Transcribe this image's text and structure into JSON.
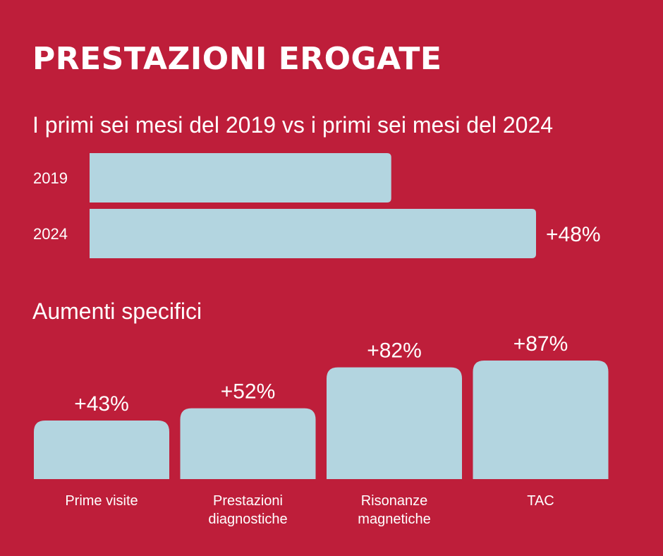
{
  "title": "PRESTAZIONI EROGATE",
  "subtitle": "I primi sei mesi del 2019 vs i primi sei mesi del 2024",
  "section_title": "Aumenti specifici",
  "colors": {
    "background": "#BE1E3A",
    "bar": "#B3D5E0",
    "text": "#FFFFFF"
  },
  "chart_data": [
    {
      "type": "bar",
      "orientation": "horizontal",
      "categories": [
        "2019",
        "2024"
      ],
      "values": [
        100,
        148
      ],
      "data_labels": [
        "",
        "+48%"
      ],
      "title": "",
      "xlabel": "",
      "ylabel": ""
    },
    {
      "type": "bar",
      "orientation": "vertical",
      "categories": [
        "Prime visite",
        "Prestazioni\ndiagnostiche",
        "Risonanze\nmagnetiche",
        "TAC"
      ],
      "values": [
        43,
        52,
        82,
        87
      ],
      "data_labels": [
        "+43%",
        "+52%",
        "+82%",
        "+87%"
      ],
      "title": "",
      "xlabel": "",
      "ylabel": ""
    }
  ]
}
